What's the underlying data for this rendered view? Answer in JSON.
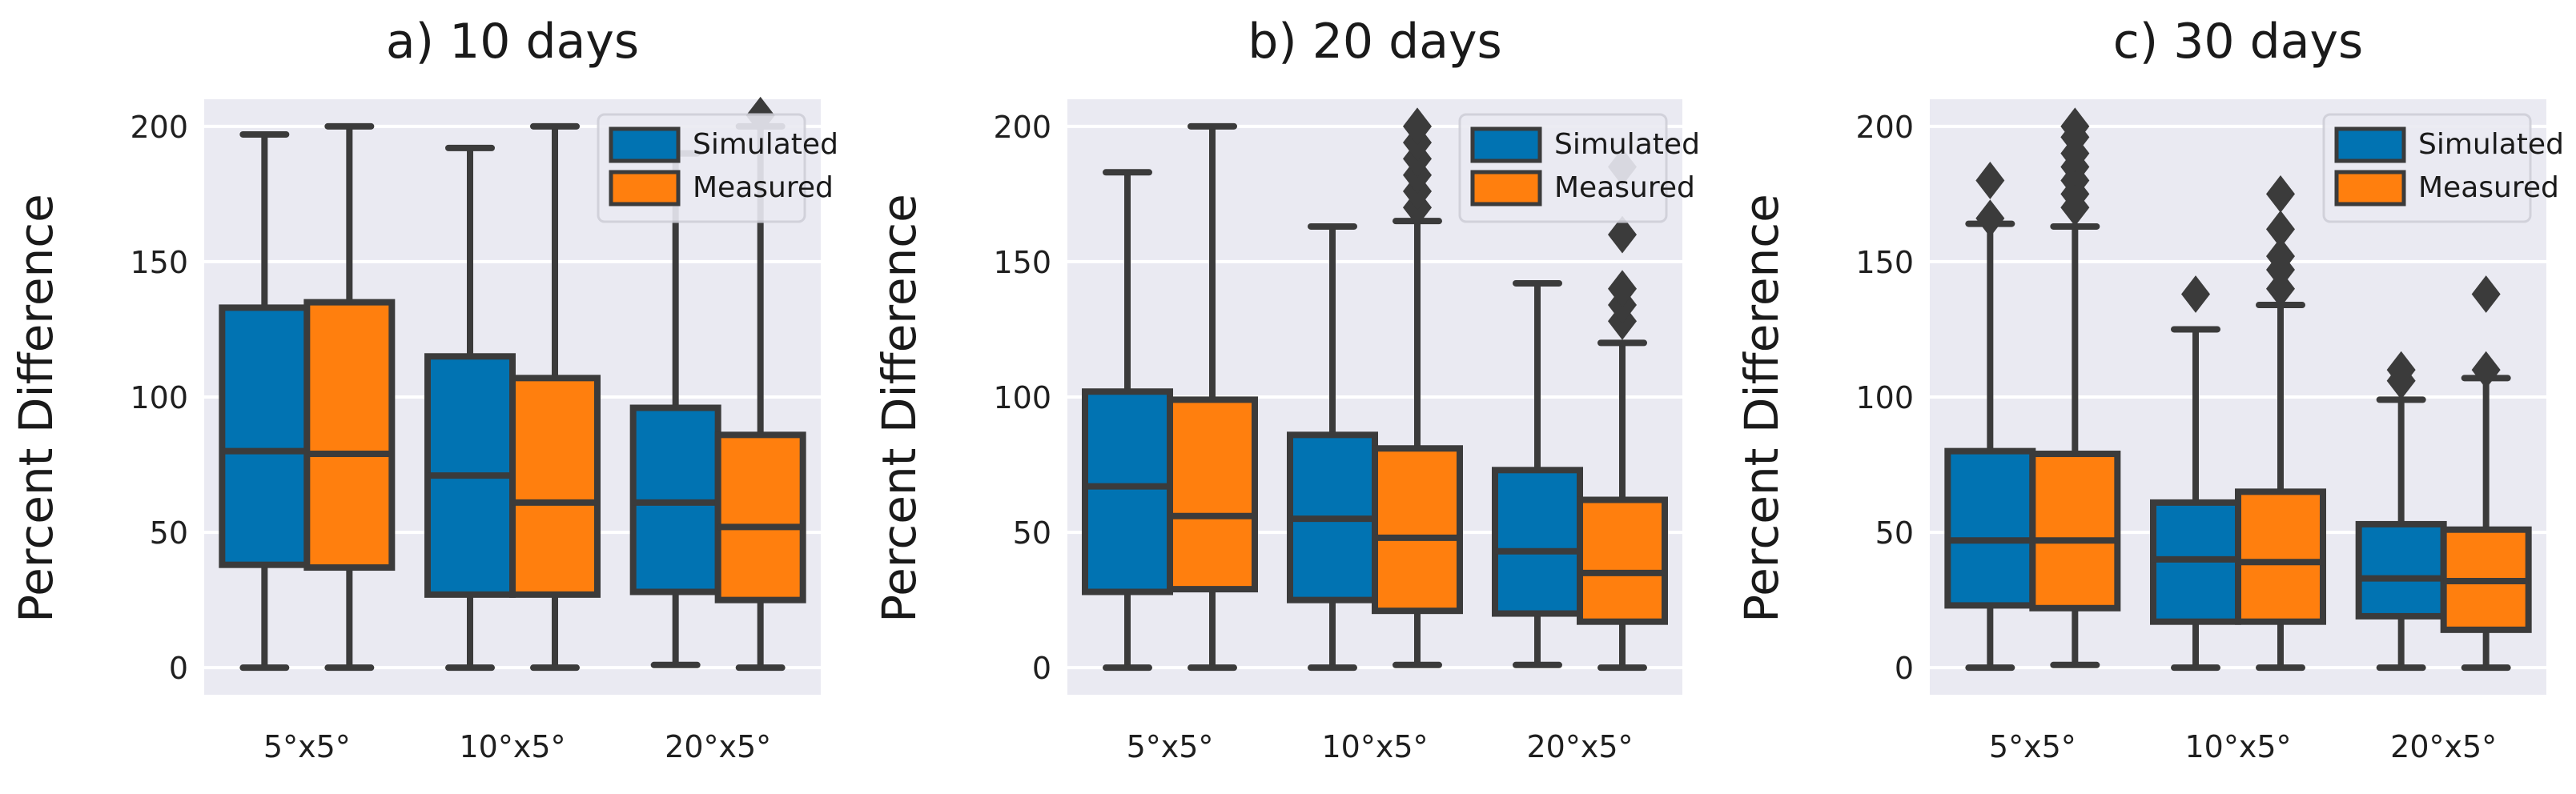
{
  "colors": {
    "simulated": "#0173b2",
    "measured": "#ff7f0e",
    "panel_bg": "#eaeaf2",
    "grid": "#ffffff",
    "line": "#3b3b3b",
    "legend_bg": "#eaeaf2"
  },
  "chart_data": [
    {
      "type": "box",
      "title": "a) 10 days",
      "ylabel": "Percent Difference",
      "xlabel": "",
      "ylim": [
        -10,
        210
      ],
      "yticks": [
        0,
        50,
        100,
        150,
        200
      ],
      "grid": true,
      "legend": {
        "position": "top-right",
        "entries": [
          "Simulated",
          "Measured"
        ]
      },
      "categories": [
        "5°x5°",
        "10°x5°",
        "20°x5°"
      ],
      "series": [
        {
          "name": "Simulated",
          "boxes": [
            {
              "whislo": 0,
              "q1": 38,
              "med": 80,
              "q3": 133,
              "whishi": 197,
              "fliers": []
            },
            {
              "whislo": 0,
              "q1": 27,
              "med": 71,
              "q3": 115,
              "whishi": 192,
              "fliers": []
            },
            {
              "whislo": 1,
              "q1": 28,
              "med": 61,
              "q3": 96,
              "whishi": 190,
              "fliers": []
            }
          ]
        },
        {
          "name": "Measured",
          "boxes": [
            {
              "whislo": 0,
              "q1": 37,
              "med": 79,
              "q3": 135,
              "whishi": 200,
              "fliers": []
            },
            {
              "whislo": 0,
              "q1": 27,
              "med": 61,
              "q3": 107,
              "whishi": 200,
              "fliers": []
            },
            {
              "whislo": 0,
              "q1": 25,
              "med": 52,
              "q3": 86,
              "whishi": 200,
              "fliers": [
                204
              ]
            }
          ]
        }
      ]
    },
    {
      "type": "box",
      "title": "b) 20 days",
      "ylabel": "Percent Difference",
      "xlabel": "",
      "ylim": [
        -10,
        210
      ],
      "yticks": [
        0,
        50,
        100,
        150,
        200
      ],
      "grid": true,
      "legend": {
        "position": "top-right",
        "entries": [
          "Simulated",
          "Measured"
        ]
      },
      "categories": [
        "5°x5°",
        "10°x5°",
        "20°x5°"
      ],
      "series": [
        {
          "name": "Simulated",
          "boxes": [
            {
              "whislo": 0,
              "q1": 28,
              "med": 67,
              "q3": 102,
              "whishi": 183,
              "fliers": []
            },
            {
              "whislo": 0,
              "q1": 25,
              "med": 55,
              "q3": 86,
              "whishi": 163,
              "fliers": []
            },
            {
              "whislo": 1,
              "q1": 20,
              "med": 43,
              "q3": 73,
              "whishi": 142,
              "fliers": []
            }
          ]
        },
        {
          "name": "Measured",
          "boxes": [
            {
              "whislo": 0,
              "q1": 29,
              "med": 56,
              "q3": 99,
              "whishi": 200,
              "fliers": []
            },
            {
              "whislo": 1,
              "q1": 21,
              "med": 48,
              "q3": 81,
              "whishi": 165,
              "fliers": [
                170,
                176,
                182,
                188,
                194,
                200
              ]
            },
            {
              "whislo": 0,
              "q1": 17,
              "med": 35,
              "q3": 62,
              "whishi": 120,
              "fliers": [
                128,
                134,
                140,
                160,
                185
              ]
            }
          ]
        }
      ]
    },
    {
      "type": "box",
      "title": "c) 30 days",
      "ylabel": "Percent Difference",
      "xlabel": "",
      "ylim": [
        -10,
        210
      ],
      "yticks": [
        0,
        50,
        100,
        150,
        200
      ],
      "grid": true,
      "legend": {
        "position": "top-right",
        "entries": [
          "Simulated",
          "Measured"
        ]
      },
      "categories": [
        "5°x5°",
        "10°x5°",
        "20°x5°"
      ],
      "series": [
        {
          "name": "Simulated",
          "boxes": [
            {
              "whislo": 0,
              "q1": 23,
              "med": 47,
              "q3": 80,
              "whishi": 164,
              "fliers": [
                166,
                180
              ]
            },
            {
              "whislo": 0,
              "q1": 17,
              "med": 40,
              "q3": 61,
              "whishi": 125,
              "fliers": [
                138
              ]
            },
            {
              "whislo": 0,
              "q1": 19,
              "med": 33,
              "q3": 53,
              "whishi": 99,
              "fliers": [
                106,
                110
              ]
            }
          ]
        },
        {
          "name": "Measured",
          "boxes": [
            {
              "whislo": 1,
              "q1": 22,
              "med": 47,
              "q3": 79,
              "whishi": 163,
              "fliers": [
                170,
                175,
                180,
                185,
                190,
                196,
                200
              ]
            },
            {
              "whislo": 0,
              "q1": 17,
              "med": 39,
              "q3": 65,
              "whishi": 134,
              "fliers": [
                140,
                147,
                152,
                162,
                175
              ]
            },
            {
              "whislo": 0,
              "q1": 14,
              "med": 32,
              "q3": 51,
              "whishi": 107,
              "fliers": [
                110,
                138
              ]
            }
          ]
        }
      ]
    }
  ]
}
